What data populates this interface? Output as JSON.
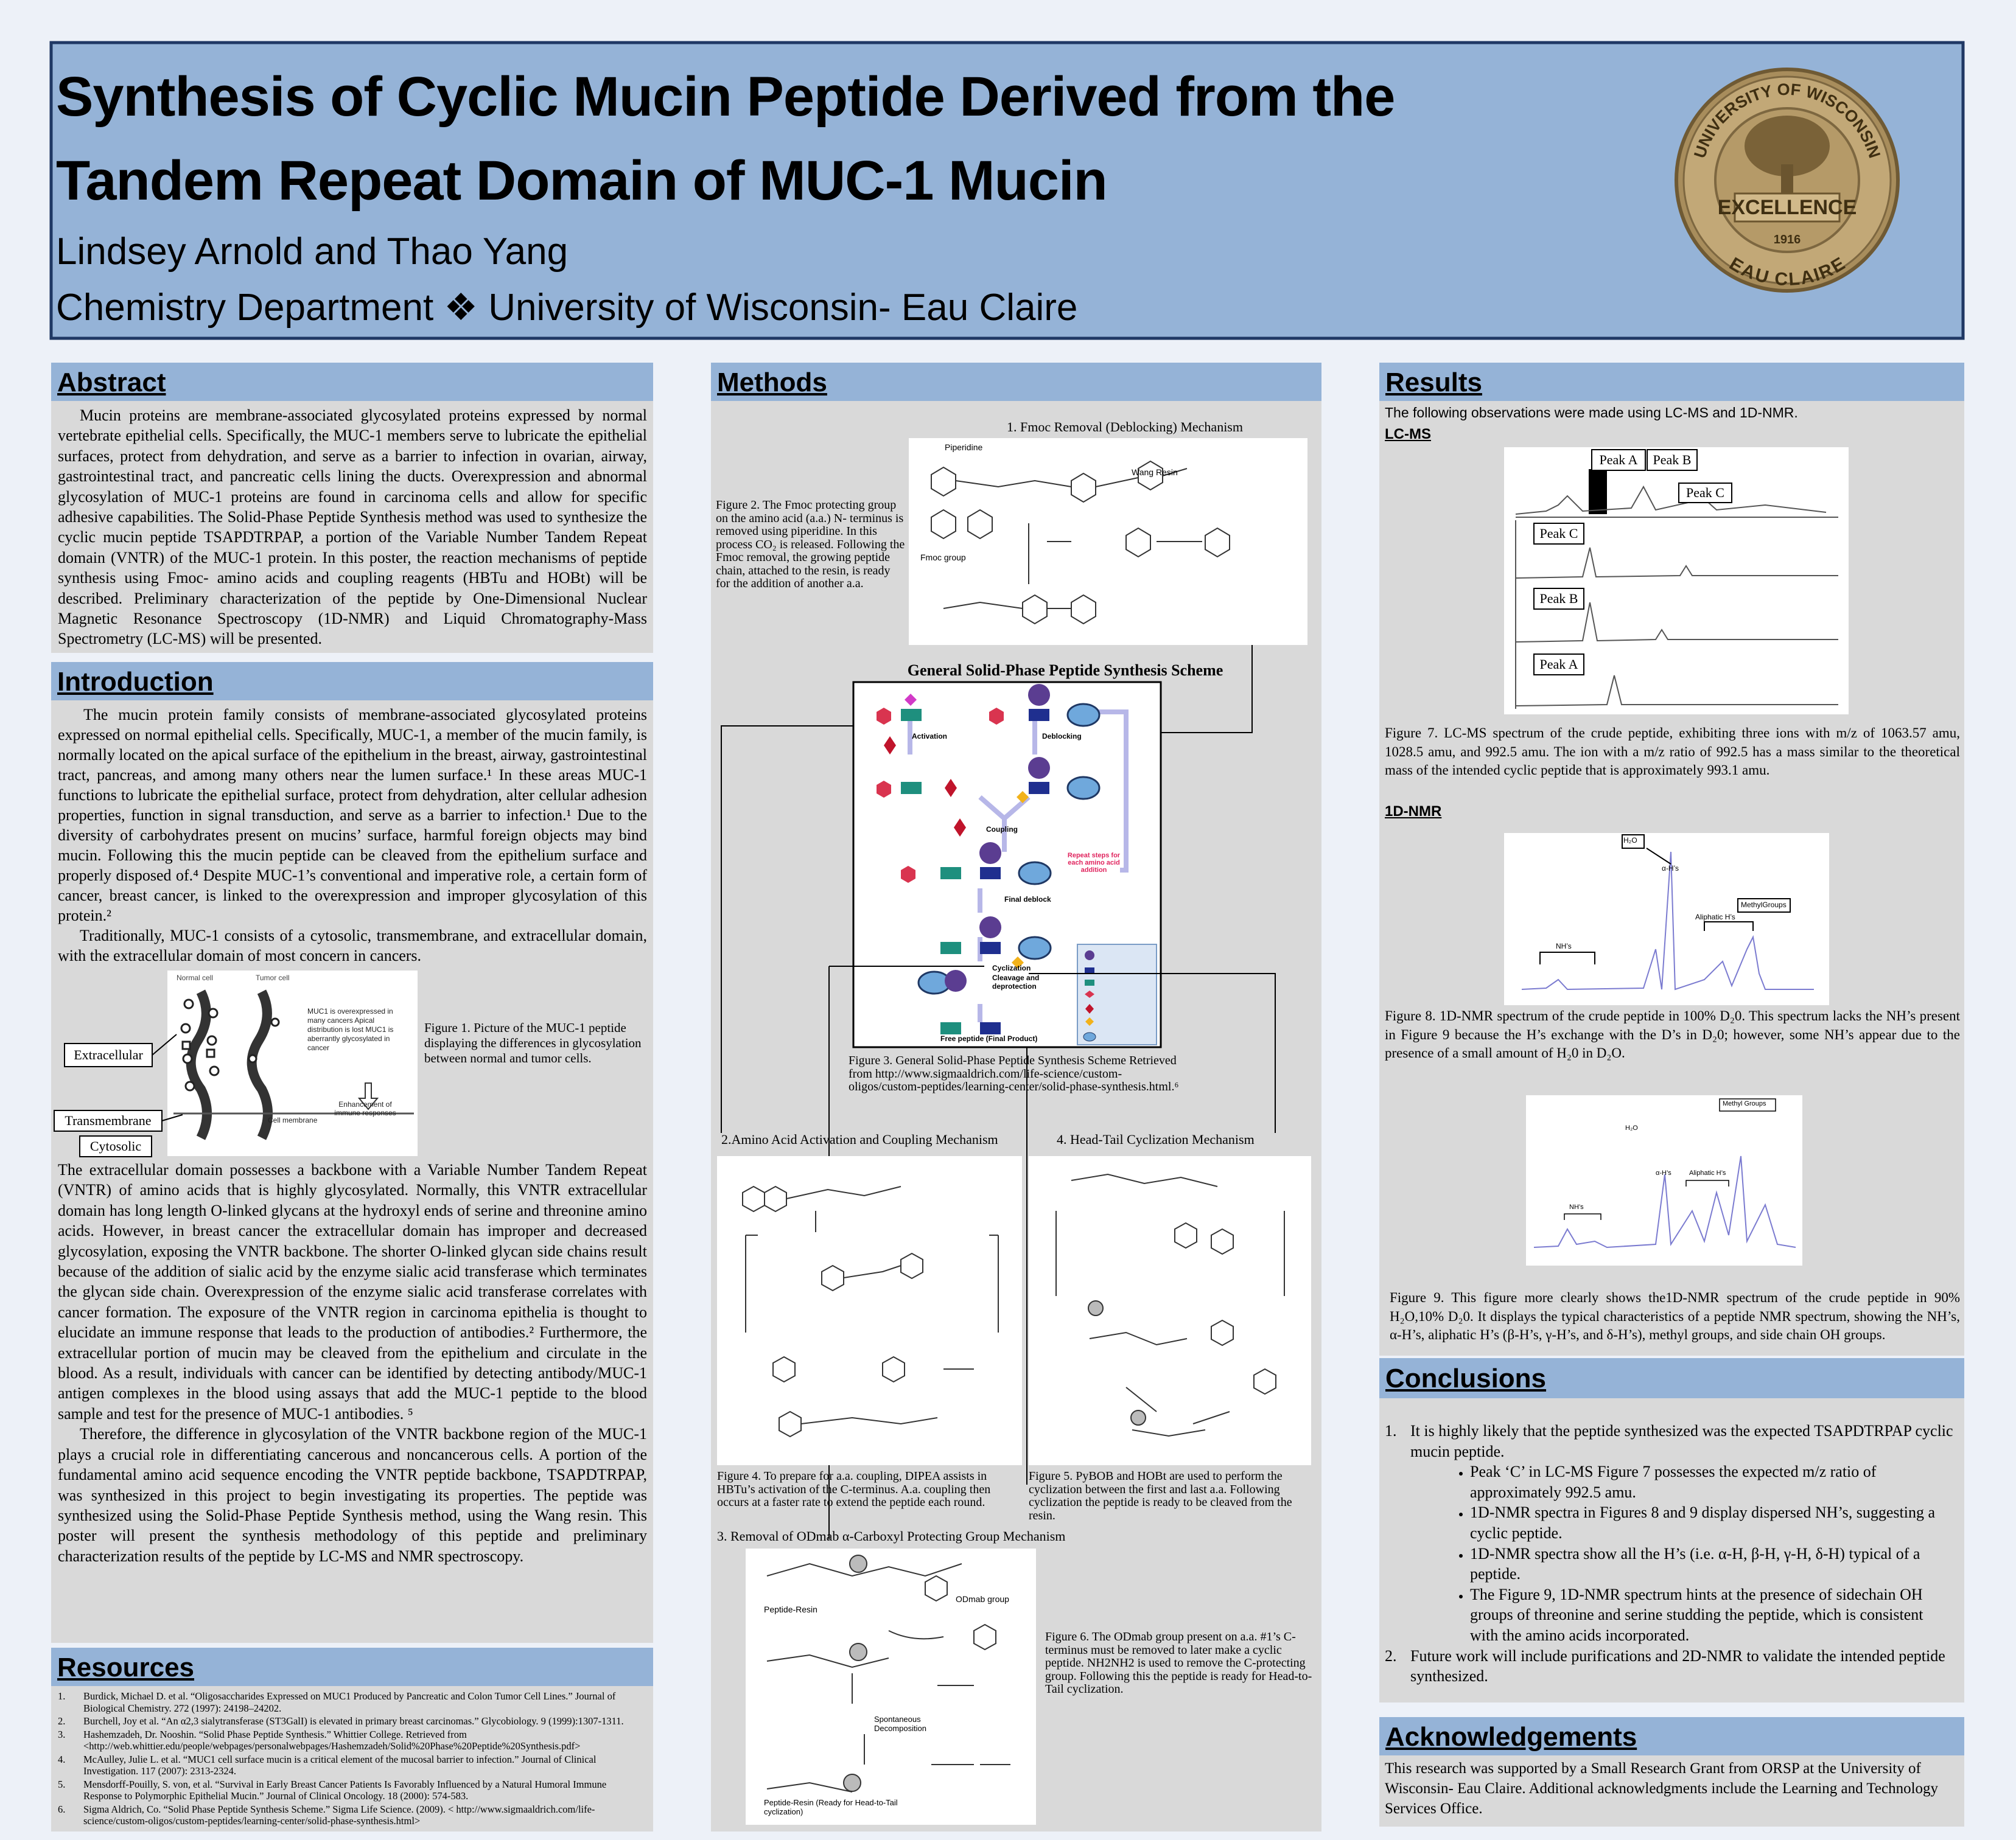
{
  "header": {
    "title_line1": "Synthesis of Cyclic Mucin Peptide Derived from the",
    "title_line2": "Tandem Repeat Domain of MUC-1 Mucin",
    "authors": "Lindsey Arnold and Thao Yang",
    "affiliation": "Chemistry Department ❖ University of Wisconsin- Eau Claire"
  },
  "logo": {
    "ring_top": "UNIVERSITY OF WISCONSIN",
    "motto": "EXCELLENCE",
    "year": "1916",
    "ring_bottom": "EAU CLAIRE"
  },
  "abstract": {
    "heading": "Abstract",
    "text": "Mucin proteins are membrane-associated glycosylated proteins expressed by normal vertebrate epithelial cells. Specifically, the MUC-1 members serve to lubricate the epithelial surfaces, protect from dehydration, and serve as a barrier to infection in ovarian, airway, gastrointestinal tract, and pancreatic cells lining the ducts. Overexpression and abnormal glycosylation of MUC-1 proteins are found in carcinoma cells and allow for specific adhesive capabilities. The Solid-Phase Peptide Synthesis method was used to synthesize the cyclic mucin peptide TSAPDTRPAP, a portion of the Variable Number Tandem Repeat domain (VNTR) of the MUC-1 protein. In this poster, the reaction mechanisms of peptide synthesis using Fmoc- amino acids and coupling reagents (HBTu and HOBt) will be described. Preliminary characterization of the peptide by One-Dimensional Nuclear Magnetic Resonance Spectroscopy (1D-NMR) and Liquid Chromatography-Mass Spectrometry (LC-MS) will be presented."
  },
  "introduction": {
    "heading": "Introduction",
    "paragraphs": [
      "The mucin protein family consists of membrane-associated glycosylated proteins expressed on normal epithelial cells.  Specifically, MUC-1, a member of the mucin family, is normally located on the apical surface of the epithelium in the breast, airway, gastrointestinal tract, pancreas, and among many others near the lumen surface.¹  In these areas MUC-1 functions to lubricate the epithelial surface, protect from dehydration, alter cellular adhesion properties, function in signal transduction, and serve as a barrier to infection.¹  Due to the diversity of carbohydrates present on mucins’ surface, harmful foreign objects may bind mucin.  Following this the mucin peptide can be cleaved from the epithelium surface and properly disposed of.⁴  Despite MUC-1’s conventional and imperative role, a certain form of cancer, breast cancer, is linked to the overexpression and improper glycosylation of this protein.²",
      "Traditionally, MUC-1 consists of a cytosolic, transmembrane, and extracellular domain, with the extracellular domain of most concern in cancers.",
      "The extracellular domain possesses a backbone with a Variable Number Tandem Repeat (VNTR) of amino acids that is highly glycosylated.  Normally, this VNTR extracellular domain has long length O-linked glycans at the hydroxyl ends of serine and threonine amino acids.  However, in breast cancer the extracellular domain has improper and decreased glycosylation,  exposing the VNTR backbone.  The shorter O-linked glycan side chains result because of the addition of sialic acid by the enzyme sialic acid transferase which terminates the glycan side chain.  Overexpression of the enzyme sialic acid transferase correlates with cancer formation.  The exposure of the VNTR region in carcinoma epithelia is thought to elucidate an immune response that leads to the production of antibodies.²  Furthermore, the extracellular portion of mucin may be cleaved from the epithelium and circulate in the blood.  As a result, individuals with cancer can be identified by detecting antibody/MUC-1 antigen complexes in the blood using assays that add the MUC-1 peptide to the blood sample and test for the presence of MUC-1 antibodies. ⁵",
      "Therefore, the difference in glycosylation of the VNTR backbone region of the MUC-1  plays a crucial role in differentiating cancerous and noncancerous cells.  A portion of the fundamental amino acid sequence encoding the VNTR peptide backbone, TSAPDTRPAP, was synthesized in this project to begin investigating its properties.  The peptide was synthesized using the Solid-Phase Peptide Synthesis method, using the Wang resin.  This poster will present the synthesis methodology of this peptide and preliminary characterization results of the peptide by LC-MS and NMR spectroscopy."
    ],
    "figure1": {
      "caption": "Figure 1. Picture of the MUC-1 peptide displaying the differences in glycosylation between normal and tumor cells.",
      "extracellular": "Extracellular",
      "transmembrane": "Transmembrane",
      "cytosolic": "Cytosolic",
      "normal_cell": "Normal cell",
      "tumor_cell": "Tumor cell",
      "note": "MUC1 is overexpressed in many cancers Apical distribution is lost MUC1 is aberrantly glycosylated in cancer",
      "immune": "Enhancement of immune responses",
      "membrane": "Cell membrane"
    }
  },
  "resources": {
    "heading": "Resources",
    "items": [
      {
        "num": "1.",
        "text": "Burdick, Michael D. et al. “Oligosaccharides Expressed on MUC1 Produced by Pancreatic and Colon Tumor Cell Lines.” Journal of Biological Chemistry. 272 (1997): 24198–24202."
      },
      {
        "num": "2.",
        "text": "Burchell, Joy et al. “An α2,3 sialytransferase  (ST3GalI) is elevated in primary breast carcinomas.” Glycobiology. 9 (1999):1307-1311."
      },
      {
        "num": "3.",
        "text": "Hashemzadeh, Dr. Nooshin. “Solid Phase Peptide Synthesis.” Whittier College. Retrieved from <http://web.whittier.edu/people/webpages/personalwebpages/Hashemzadeh/Solid%20Phase%20Peptide%20Synthesis.pdf>"
      },
      {
        "num": "4.",
        "text": "McAulley, Julie L. et al. “MUC1 cell surface mucin is a critical element of the mucosal barrier to infection.” Journal of Clinical Investigation. 117 (2007): 2313-2324."
      },
      {
        "num": "5.",
        "text": "Mensdorff-Pouilly, S. von, et al. “Survival in Early Breast Cancer Patients Is Favorably Influenced by a Natural Humoral Immune Response to Polymorphic Epithelial Mucin.” Journal of Clinical Oncology. 18 (2000): 574-583."
      },
      {
        "num": "6.",
        "text": "Sigma Aldrich, Co. “Solid Phase Peptide Synthesis Scheme.” Sigma Life Science. (2009). < http://www.sigmaaldrich.com/life-science/custom-oligos/custom-peptides/learning-center/solid-phase-synthesis.html>"
      }
    ]
  },
  "methods": {
    "heading": "Methods",
    "step1_title": "1.  Fmoc Removal (Deblocking) Mechanism",
    "figure2": {
      "caption": "Figure 2. The Fmoc protecting group on the amino acid (a.a.) N- terminus is removed using piperidine.  In this process CO₂ is released.  Following the Fmoc removal, the growing peptide chain, attached to the resin, is ready for the addition of another a.a.",
      "piperidine": "Piperidine",
      "resin": "Wang Resin",
      "fmoc": "Fmoc group"
    },
    "scheme_title": "General Solid-Phase Peptide Synthesis Scheme",
    "scheme": {
      "activation": "Activation",
      "deblocking": "Deblocking",
      "coupling": "Coupling",
      "repeat": "Repeat steps for each amino acid addition",
      "final_deblock": "Final deblock",
      "cyclization": "Cyclization",
      "cleavage": "Cleavage and deprotection",
      "product": "Free peptide (Final Product)"
    },
    "figure3_caption": "Figure 3. General Solid-Phase Peptide Synthesis Scheme Retrieved from http://www.sigmaaldrich.com/life-science/custom-oligos/custom-peptides/learning-center/solid-phase-synthesis.html.⁶",
    "step2_title": "2.Amino Acid Activation and Coupling Mechanism",
    "step4_title": "4. Head-Tail Cyclization Mechanism",
    "figure4_caption": "Figure 4. To prepare for a.a. coupling, DIPEA assists in HBTu’s activation of the C-terminus.  A.a. coupling then occurs at a faster rate to extend the peptide each round.",
    "figure5_caption": "Figure 5. PyBOB and HOBt are used to perform the cyclization between the first and last a.a.  Following cyclization the peptide is ready to be cleaved from the resin.",
    "step3_title": "3. Removal of ODmab α-Carboxyl Protecting Group Mechanism",
    "figure6": {
      "caption": "Figure 6. The ODmab group present on a.a. #1’s C-terminus must be removed to later make a cyclic peptide.  NH2NH2 is used to remove the C-protecting group.  Following this the peptide is ready for Head-to-Tail cyclization.",
      "odmab": "ODmab group",
      "resin": "Peptide-Resin",
      "decomposition": "Spontaneous Decomposition",
      "ready": "Peptide-Resin (Ready for Head-to-Tail cyclization)"
    }
  },
  "results": {
    "heading": "Results",
    "intro": "The following observations were made using LC-MS and 1D-NMR.",
    "lcms_heading": "LC-MS",
    "lcms_labels": {
      "top_a": "Peak A",
      "top_b": "Peak B",
      "top_c": "Peak C",
      "trace_c": "Peak C",
      "trace_b": "Peak B",
      "trace_a": "Peak A"
    },
    "figure7_caption": "Figure 7. LC-MS spectrum of the crude peptide, exhibiting three ions with m/z of 1063.57 amu, 1028.5 amu, and 992.5 amu.  The ion with a m/z ratio of 992.5 has a mass similar to the theoretical mass of the intended cyclic peptide that is approximately 993.1 amu.",
    "nmr_heading": "1D-NMR",
    "figure8_labels": {
      "water": "H₂O",
      "alpha": "α-H’s",
      "aliphatic": "Aliphatic H’s",
      "methyl": "MethylGroups",
      "nh": "NH’s"
    },
    "figure8_caption": "Figure 8. 1D-NMR spectrum of the crude peptide in 100% D₂0.  This spectrum lacks the NH’s present in Figure 9 because the H’s exchange with the D’s in D₂0; however, some NH’s appear due to the presence of a small amount of H₂0 in D₂O.",
    "figure9_labels": {
      "methyl": "Methyl Groups",
      "water": "H₂O",
      "alpha": "α-H’s",
      "aliphatic": "Aliphatic H’s",
      "nh": "NH’s"
    },
    "figure9_caption": "Figure 9. This figure more clearly shows the1D-NMR spectrum of the crude peptide in 90% H₂O,10% D₂0.  It displays the typical characteristics of a peptide NMR spectrum, showing the NH’s, α-H’s, aliphatic H’s (β-H’s, γ-H’s, and δ-H’s), methyl groups, and side chain OH groups."
  },
  "conclusions": {
    "heading": "Conclusions",
    "items": [
      {
        "num": "1.",
        "text": "It is highly likely that the peptide synthesized was the expected TSAPDTRPAP cyclic mucin peptide.",
        "bullets": [
          "Peak ‘C’ in LC-MS Figure 7 possesses the expected m/z ratio of approximately 992.5 amu.",
          "1D-NMR spectra in Figures 8 and 9 display dispersed NH’s, suggesting a cyclic peptide.",
          "1D-NMR spectra show all the H’s (i.e. α-H, β-H, γ-H, δ-H) typical of a peptide.",
          "The Figure 9, 1D-NMR spectrum hints at the presence of sidechain OH  groups of threonine and serine studding the peptide, which is consistent with the amino acids incorporated."
        ]
      },
      {
        "num": "2.",
        "text": "Future work will include purifications and 2D-NMR to validate the intended peptide synthesized.",
        "bullets": []
      }
    ]
  },
  "acknowledgements": {
    "heading": "Acknowledgements",
    "text": "This research was supported by a Small Research Grant from ORSP at the University of Wisconsin- Eau Claire.  Additional acknowledgments include the Learning and Technology Services Office."
  }
}
